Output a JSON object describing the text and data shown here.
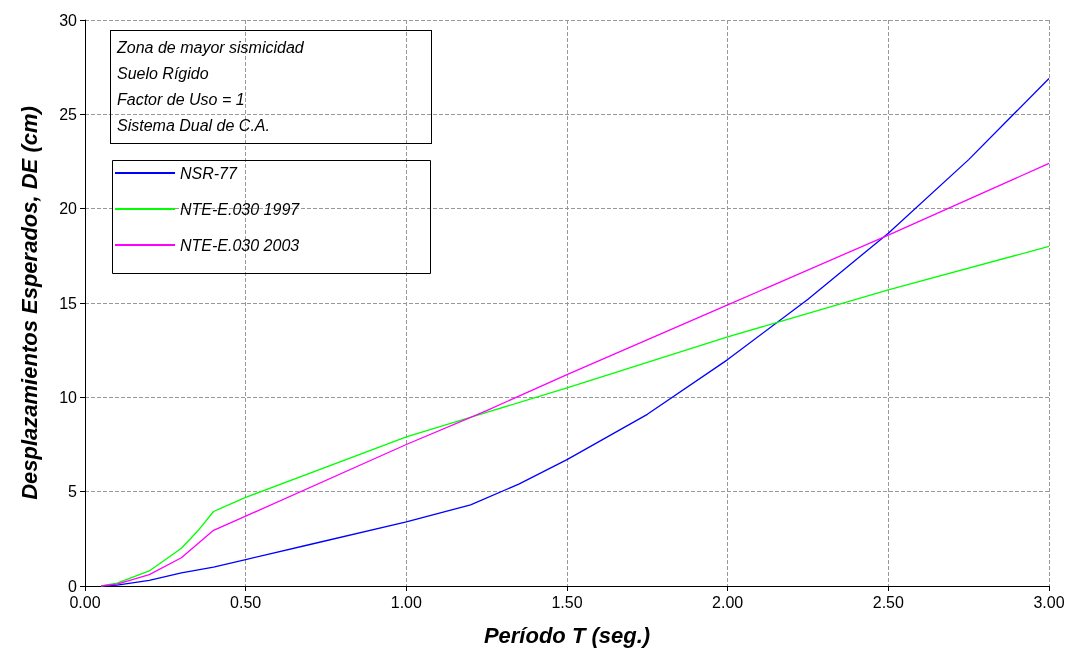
{
  "chart_data": {
    "type": "line",
    "xlabel": "Período T (seg.)",
    "ylabel": "Desplazamientos Esperados, DE (cm)",
    "annotations": [
      "Zona de mayor sismicidad",
      "Suelo Rígido",
      "Factor de Uso = 1",
      "Sistema Dual de C.A."
    ],
    "xlim": [
      0,
      3
    ],
    "xticks": [
      {
        "value": 0,
        "label": "0.00"
      },
      {
        "value": 0.5,
        "label": "0.50"
      },
      {
        "value": 1,
        "label": "1.00"
      },
      {
        "value": 1.5,
        "label": "1.50"
      },
      {
        "value": 2,
        "label": "2.00"
      },
      {
        "value": 2.5,
        "label": "2.50"
      },
      {
        "value": 3,
        "label": "3.00"
      }
    ],
    "ylim": [
      0,
      30
    ],
    "yticks": [
      0,
      5,
      10,
      15,
      20,
      25,
      30
    ],
    "grid": true,
    "legend": "top left",
    "marker": "none",
    "line_style": "solid",
    "series": [
      {
        "name": "NSR-77",
        "color": "#0000ff",
        "x": [
          0.05,
          0.1,
          0.2,
          0.3,
          0.4,
          0.5,
          0.7,
          1.0,
          1.2,
          1.35,
          1.5,
          1.75,
          2.0,
          2.25,
          2.5,
          2.75,
          3.0
        ],
        "values": [
          0,
          0.05,
          0.3,
          0.7,
          1.0,
          1.4,
          2.2,
          3.4,
          4.3,
          5.4,
          6.7,
          9.1,
          12.0,
          15.2,
          18.7,
          22.6,
          26.9
        ]
      },
      {
        "name": "NTE-E.030 1997",
        "color": "#00ff00",
        "x": [
          0.05,
          0.1,
          0.2,
          0.3,
          0.35,
          0.4,
          0.5,
          1.0,
          1.25,
          1.5,
          2.0,
          2.2,
          2.5,
          3.0
        ],
        "values": [
          0,
          0.15,
          0.8,
          2.0,
          2.9,
          3.95,
          4.7,
          7.9,
          9.2,
          10.5,
          13.2,
          14.2,
          15.7,
          18.0
        ]
      },
      {
        "name": "NTE-E.030 2003",
        "color": "#ff00ff",
        "x": [
          0.05,
          0.1,
          0.2,
          0.3,
          0.4,
          0.5,
          1.0,
          1.25,
          1.5,
          2.0,
          2.5,
          3.0
        ],
        "values": [
          0,
          0.1,
          0.6,
          1.5,
          2.95,
          3.7,
          7.5,
          9.3,
          11.2,
          14.9,
          18.6,
          22.4
        ]
      }
    ]
  }
}
